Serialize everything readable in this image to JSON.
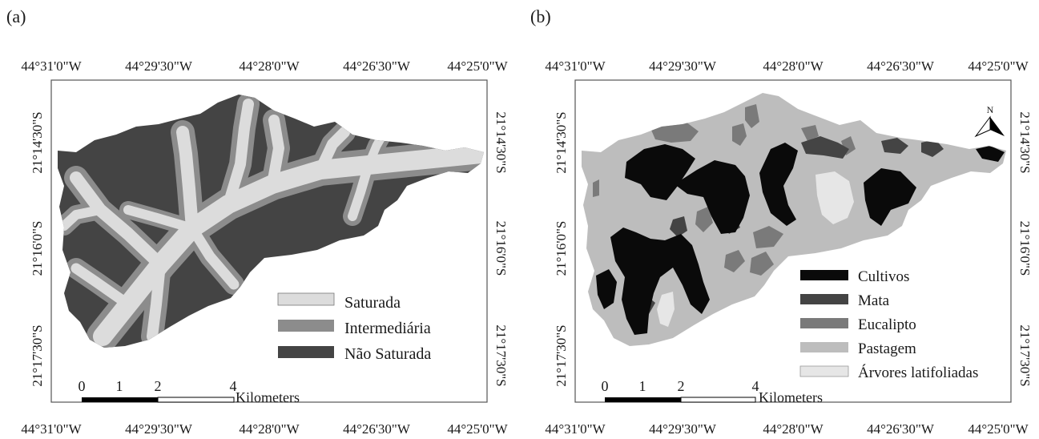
{
  "panels": {
    "a": {
      "label": "(a)",
      "top_ticks": [
        "44°31'0\"W",
        "44°29'30\"W",
        "44°28'0\"W",
        "44°26'30\"W",
        "44°25'0\"W"
      ],
      "bottom_ticks": [
        "44°31'0\"W",
        "44°29'30\"W",
        "44°28'0\"W",
        "44°26'30\"W",
        "44°25'0\"W"
      ],
      "left_ticks": [
        "21°14'30\"S",
        "21°16'0\"S",
        "21°17'30\"S"
      ],
      "right_ticks": [
        "21°14'30\"S",
        "21°16'0\"S",
        "21°17'30\"S"
      ],
      "legend": [
        {
          "label": "Saturada",
          "color": "#dcdcdc"
        },
        {
          "label": "Intermediária",
          "color": "#8c8c8c"
        },
        {
          "label": "Não Saturada",
          "color": "#444444"
        }
      ],
      "scalebar": {
        "ticks": [
          "0",
          "1",
          "2",
          "4"
        ],
        "unit": "Kilometers"
      }
    },
    "b": {
      "label": "(b)",
      "top_ticks": [
        "44°31'0\"W",
        "44°29'30\"W",
        "44°28'0\"W",
        "44°26'30\"W",
        "44°25'0\"W"
      ],
      "bottom_ticks": [
        "44°31'0\"W",
        "44°29'30\"W",
        "44°28'0\"W",
        "44°26'30\"W",
        "44°25'0\"W"
      ],
      "left_ticks": [
        "21°14'30\"S",
        "21°16'0\"S",
        "21°17'30\"S"
      ],
      "right_ticks": [
        "21°14'30\"S",
        "21°16'0\"S",
        "21°17'30\"S"
      ],
      "legend": [
        {
          "label": "Cultivos",
          "color": "#0a0a0a"
        },
        {
          "label": "Mata",
          "color": "#444444"
        },
        {
          "label": "Eucalipto",
          "color": "#7a7a7a"
        },
        {
          "label": "Pastagem",
          "color": "#bdbdbd"
        },
        {
          "label": "Árvores latifoliadas",
          "color": "#e6e6e6"
        }
      ],
      "scalebar": {
        "ticks": [
          "0",
          "1",
          "2",
          "4"
        ],
        "unit": "Kilometers"
      },
      "north_arrow": {
        "label": "N",
        "icon": "north-arrow-icon"
      }
    }
  },
  "colors": {
    "frame": "#555555",
    "background": "#ffffff"
  }
}
